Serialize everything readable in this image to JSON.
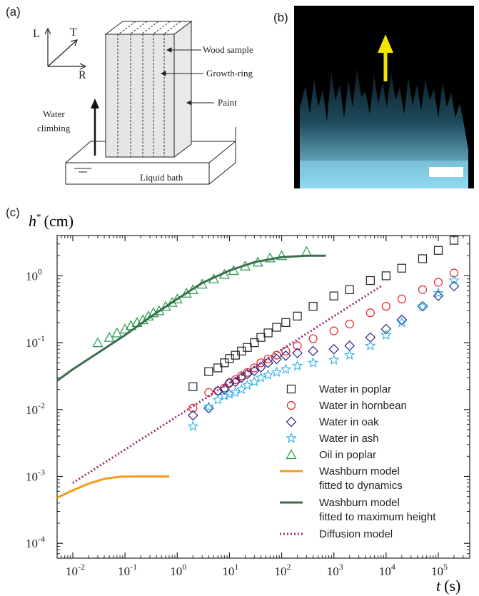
{
  "panels": {
    "a": {
      "label": "(a)",
      "axes": {
        "L": "L",
        "T": "T",
        "R": "R"
      },
      "labels": {
        "wood_sample": "Wood sample",
        "growth_ring": "Growth-ring",
        "paint": "Paint",
        "water_climbing_1": "Water",
        "water_climbing_2": "climbing",
        "liquid_bath": "Liquid bath"
      }
    },
    "b": {
      "label": "(b)",
      "arrow_color": "#f2e600",
      "image_color": "#7fd4f0",
      "background": "#000000"
    },
    "c": {
      "label": "(c)"
    }
  },
  "chart_data": {
    "type": "scatter",
    "ylabel_symbol": "h",
    "ylabel_sup": "*",
    "ylabel_unit": "(cm)",
    "xlabel_symbol": "t",
    "xlabel_unit": "(s)",
    "xscale": "log",
    "yscale": "log",
    "xlim": [
      0.005,
      400000
    ],
    "ylim": [
      6e-05,
      4
    ],
    "x_ticks": [
      {
        "v": 0.01,
        "base": "10",
        "exp": "-2"
      },
      {
        "v": 0.1,
        "base": "10",
        "exp": "-1"
      },
      {
        "v": 1,
        "base": "10",
        "exp": "0"
      },
      {
        "v": 10,
        "base": "10",
        "exp": "1"
      },
      {
        "v": 100,
        "base": "10",
        "exp": "2"
      },
      {
        "v": 1000,
        "base": "10",
        "exp": "3"
      },
      {
        "v": 10000,
        "base": "10",
        "exp": "4"
      },
      {
        "v": 100000,
        "base": "10",
        "exp": "5"
      }
    ],
    "y_ticks": [
      {
        "v": 0.0001,
        "base": "10",
        "exp": "-4"
      },
      {
        "v": 0.001,
        "base": "10",
        "exp": "-3"
      },
      {
        "v": 0.01,
        "base": "10",
        "exp": "-2"
      },
      {
        "v": 0.1,
        "base": "10",
        "exp": "-1"
      },
      {
        "v": 1,
        "base": "10",
        "exp": "0"
      }
    ],
    "legend_position": "bottom-right",
    "series": [
      {
        "name": "Water in poplar",
        "marker": "square",
        "color": "#222222",
        "x": [
          2,
          4,
          6,
          8,
          10,
          13,
          17,
          22,
          30,
          40,
          55,
          80,
          120,
          200,
          400,
          1000,
          2000,
          5000,
          10000,
          20000,
          50000,
          100000,
          200000
        ],
        "y": [
          0.022,
          0.037,
          0.042,
          0.05,
          0.058,
          0.065,
          0.075,
          0.085,
          0.1,
          0.12,
          0.14,
          0.17,
          0.2,
          0.25,
          0.35,
          0.5,
          0.62,
          0.85,
          1.0,
          1.3,
          1.8,
          2.4,
          3.4
        ]
      },
      {
        "name": "Water in hornbean",
        "marker": "circle",
        "color": "#e8222a",
        "x": [
          2,
          4,
          6,
          8,
          10,
          13,
          17,
          22,
          30,
          40,
          55,
          80,
          120,
          200,
          400,
          1000,
          2000,
          5000,
          10000,
          20000,
          50000,
          100000,
          200000
        ],
        "y": [
          0.0105,
          0.018,
          0.019,
          0.021,
          0.025,
          0.028,
          0.032,
          0.036,
          0.042,
          0.05,
          0.057,
          0.065,
          0.075,
          0.09,
          0.115,
          0.15,
          0.19,
          0.28,
          0.35,
          0.45,
          0.62,
          0.8,
          1.1
        ]
      },
      {
        "name": "Water in oak",
        "marker": "diamond",
        "color": "#262680",
        "x": [
          2,
          4,
          6,
          8,
          10,
          13,
          17,
          22,
          30,
          40,
          55,
          80,
          120,
          200,
          400,
          1000,
          2000,
          5000,
          10000,
          20000,
          50000,
          100000,
          200000
        ],
        "y": [
          0.0082,
          0.0105,
          0.019,
          0.02,
          0.025,
          0.026,
          0.03,
          0.034,
          0.038,
          0.043,
          0.05,
          0.057,
          0.064,
          0.07,
          0.075,
          0.08,
          0.09,
          0.12,
          0.16,
          0.22,
          0.35,
          0.5,
          0.7
        ]
      },
      {
        "name": "Water in ash",
        "marker": "star",
        "color": "#2eaee8",
        "x": [
          2,
          4,
          6,
          8,
          10,
          13,
          17,
          22,
          30,
          40,
          55,
          80,
          120,
          200,
          400,
          1000,
          2000,
          5000,
          10000,
          20000,
          50000,
          100000,
          200000
        ],
        "y": [
          0.0056,
          0.011,
          0.014,
          0.016,
          0.017,
          0.018,
          0.02,
          0.023,
          0.026,
          0.03,
          0.033,
          0.036,
          0.04,
          0.045,
          0.05,
          0.055,
          0.065,
          0.09,
          0.13,
          0.2,
          0.35,
          0.55,
          0.85
        ]
      },
      {
        "name": "Oil in poplar",
        "marker": "triangle",
        "color": "#1e9a4a",
        "x": [
          0.03,
          0.05,
          0.07,
          0.1,
          0.13,
          0.17,
          0.22,
          0.28,
          0.35,
          0.45,
          0.6,
          0.8,
          1.0,
          1.5,
          2,
          3,
          5,
          8,
          12,
          20,
          35,
          60,
          100,
          300
        ],
        "y": [
          0.1,
          0.12,
          0.14,
          0.16,
          0.18,
          0.2,
          0.22,
          0.25,
          0.28,
          0.3,
          0.35,
          0.4,
          0.45,
          0.55,
          0.62,
          0.75,
          0.9,
          1.05,
          1.2,
          1.4,
          1.6,
          1.85,
          2.0,
          2.3
        ]
      },
      {
        "name": "Washburn model fitted to dynamics",
        "legend_line2": "fitted to dynamics",
        "legend_line1": "Washburn model",
        "marker": "line",
        "color": "#f59a1c",
        "x": [
          0.005,
          0.01,
          0.02,
          0.04,
          0.08,
          0.15,
          0.3,
          0.7
        ],
        "y": [
          0.00048,
          0.00062,
          0.00078,
          0.00092,
          0.00099,
          0.001,
          0.001,
          0.001
        ]
      },
      {
        "name": "Washburn model fitted to maximum height",
        "legend_line1": "Washburn model",
        "legend_line2": "fitted to maximum height",
        "marker": "line",
        "color": "#3b6e4e",
        "x": [
          0.005,
          0.01,
          0.03,
          0.1,
          0.3,
          1,
          3,
          10,
          30,
          100,
          300,
          700
        ],
        "y": [
          0.027,
          0.04,
          0.07,
          0.13,
          0.24,
          0.45,
          0.78,
          1.2,
          1.6,
          1.9,
          2.0,
          2.0
        ]
      },
      {
        "name": "Diffusion model",
        "marker": "dotted",
        "color": "#9b2a6e",
        "x": [
          0.01,
          8000
        ],
        "y": [
          0.0008,
          0.7
        ]
      }
    ]
  }
}
